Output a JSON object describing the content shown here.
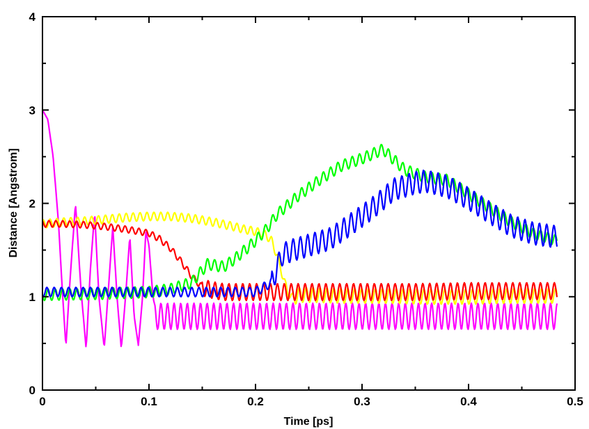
{
  "chart_data": {
    "type": "line",
    "title": "",
    "xlabel": "Time [ps]",
    "ylabel": "Distance [Angstrom]",
    "xlim": [
      0,
      0.5
    ],
    "ylim": [
      0,
      4
    ],
    "xticks": [
      "0",
      "0.1",
      "0.2",
      "0.3",
      "0.4",
      "0.5"
    ],
    "yticks": [
      "0",
      "1",
      "2",
      "3",
      "4"
    ],
    "grid": false,
    "legend": "none",
    "series": [
      {
        "color": "#ff00ff",
        "x": [
          0,
          0.005,
          0.01,
          0.015,
          0.019,
          0.022,
          0.026,
          0.031,
          0.036,
          0.041,
          0.045,
          0.049,
          0.053,
          0.058,
          0.062,
          0.066,
          0.07,
          0.074,
          0.078,
          0.082,
          0.086,
          0.09,
          0.094,
          0.097,
          0.1,
          0.103,
          0.105
        ],
        "y": [
          3.0,
          2.9,
          2.5,
          1.8,
          1.0,
          0.47,
          1.2,
          2.0,
          1.1,
          0.44,
          1.3,
          1.9,
          1.0,
          0.45,
          1.1,
          1.75,
          1.0,
          0.44,
          1.0,
          1.65,
          0.8,
          0.48,
          1.0,
          1.7,
          1.55,
          1.1,
          0.9
        ],
        "oscillation": {
          "x_start": 0.105,
          "x_end": 0.483,
          "center": 0.79,
          "amplitude": 0.14,
          "period": 0.0062
        }
      },
      {
        "color": "#ffff00",
        "x": [
          0,
          0.02,
          0.04,
          0.06,
          0.08,
          0.1,
          0.12,
          0.14,
          0.16,
          0.18,
          0.19,
          0.2,
          0.21,
          0.215,
          0.22,
          0.225,
          0.23,
          0.235,
          0.24,
          0.25,
          0.28,
          0.32,
          0.36,
          0.4,
          0.44,
          0.483
        ],
        "y": [
          1.78,
          1.8,
          1.81,
          1.83,
          1.85,
          1.86,
          1.86,
          1.84,
          1.8,
          1.75,
          1.72,
          1.7,
          1.66,
          1.6,
          1.45,
          1.25,
          1.05,
          0.98,
          1.02,
          1.02,
          1.01,
          1.01,
          1.0,
          1.0,
          1.01,
          1.01
        ],
        "oscillation": {
          "amplitude": 0.045,
          "period": 0.0065,
          "late_amplitude": 0.08,
          "late_start": 0.235
        }
      },
      {
        "color": "#ff0000",
        "x": [
          0,
          0.02,
          0.04,
          0.06,
          0.08,
          0.1,
          0.11,
          0.12,
          0.13,
          0.14,
          0.15,
          0.16,
          0.17,
          0.2,
          0.25,
          0.3,
          0.35,
          0.4,
          0.45,
          0.483
        ],
        "y": [
          1.78,
          1.78,
          1.77,
          1.75,
          1.72,
          1.68,
          1.62,
          1.52,
          1.38,
          1.22,
          1.1,
          1.07,
          1.05,
          1.05,
          1.05,
          1.05,
          1.05,
          1.06,
          1.06,
          1.06
        ],
        "oscillation": {
          "amplitude": 0.035,
          "period": 0.0065,
          "late_amplitude": 0.09,
          "late_start": 0.15
        }
      },
      {
        "color": "#00ff00",
        "x": [
          0,
          0.05,
          0.1,
          0.12,
          0.14,
          0.155,
          0.17,
          0.18,
          0.2,
          0.21,
          0.22,
          0.24,
          0.26,
          0.28,
          0.3,
          0.32,
          0.325,
          0.34,
          0.36,
          0.38,
          0.4,
          0.42,
          0.44,
          0.46,
          0.483
        ],
        "y": [
          1.02,
          1.03,
          1.05,
          1.08,
          1.15,
          1.35,
          1.32,
          1.4,
          1.6,
          1.72,
          1.88,
          2.08,
          2.25,
          2.4,
          2.48,
          2.58,
          2.52,
          2.36,
          2.28,
          2.25,
          2.1,
          1.95,
          1.8,
          1.68,
          1.6
        ],
        "oscillation": {
          "amplitude": 0.06,
          "period": 0.0068
        }
      },
      {
        "color": "#0000ff",
        "x": [
          0,
          0.05,
          0.1,
          0.15,
          0.2,
          0.215,
          0.225,
          0.235,
          0.25,
          0.27,
          0.29,
          0.31,
          0.33,
          0.35,
          0.36,
          0.38,
          0.4,
          0.42,
          0.44,
          0.46,
          0.483
        ],
        "y": [
          1.05,
          1.05,
          1.05,
          1.05,
          1.05,
          1.15,
          1.45,
          1.5,
          1.55,
          1.62,
          1.78,
          1.95,
          2.15,
          2.22,
          2.24,
          2.18,
          2.05,
          1.9,
          1.76,
          1.68,
          1.64
        ],
        "oscillation": {
          "amplitude": 0.05,
          "period": 0.0068,
          "late_amplitude": 0.12,
          "late_start": 0.215
        }
      }
    ]
  }
}
